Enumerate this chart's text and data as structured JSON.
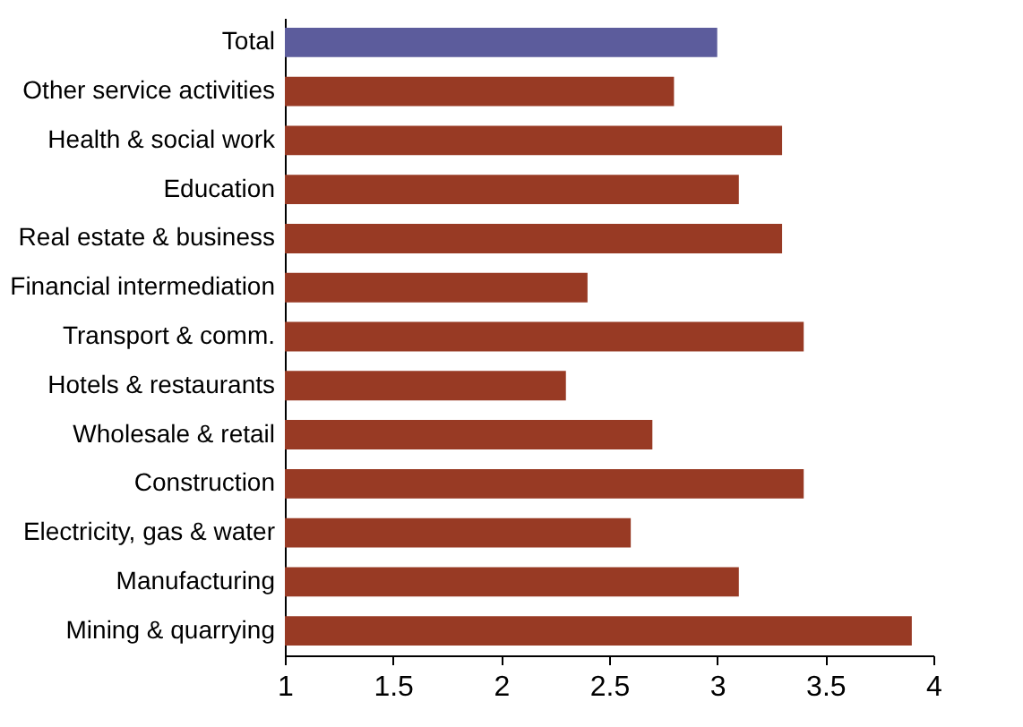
{
  "chart_data": {
    "type": "bar",
    "orientation": "horizontal",
    "categories": [
      "Total",
      "Other service activities",
      "Health & social work",
      "Education",
      "Real estate & business",
      "Financial intermediation",
      "Transport & comm.",
      "Hotels & restaurants",
      "Wholesale & retail",
      "Construction",
      "Electricity, gas & water",
      "Manufacturing",
      "Mining & quarrying"
    ],
    "values": [
      3.0,
      2.8,
      3.3,
      3.1,
      3.3,
      2.4,
      3.4,
      2.3,
      2.7,
      3.4,
      2.6,
      3.1,
      3.9
    ],
    "colors": [
      "#5c5c9c",
      "#983a24",
      "#983a24",
      "#983a24",
      "#983a24",
      "#983a24",
      "#983a24",
      "#983a24",
      "#983a24",
      "#983a24",
      "#983a24",
      "#983a24",
      "#983a24"
    ],
    "xlim": [
      1,
      4
    ],
    "xticks": [
      1,
      1.5,
      2,
      2.5,
      3,
      3.5,
      4
    ],
    "grid": false
  }
}
